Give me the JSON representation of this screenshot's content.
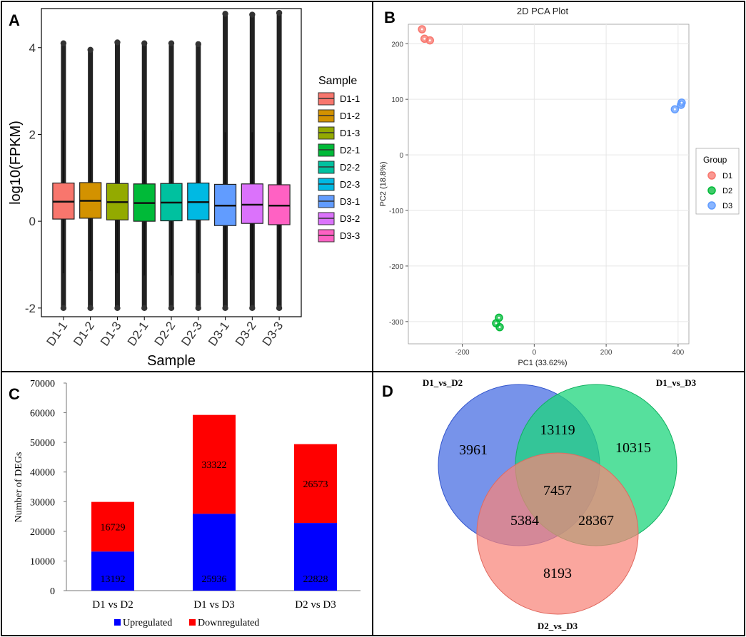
{
  "chart_data": [
    {
      "panel": "A",
      "type": "box",
      "title": "",
      "xlabel": "Sample",
      "ylabel": "log10(FPKM)",
      "ylim": [
        -2.2,
        4.9
      ],
      "yticks": [
        -2,
        0,
        2,
        4
      ],
      "legend_title": "Sample",
      "legend_position": "right",
      "samples": [
        {
          "name": "D1-1",
          "color": "#F8766D",
          "q1": 0.05,
          "median": 0.45,
          "q3": 0.88,
          "wlow": -1.2,
          "whigh": 2.1,
          "outlier_top": 4.1,
          "outlier_bottom": -2.0
        },
        {
          "name": "D1-2",
          "color": "#D39200",
          "q1": 0.07,
          "median": 0.47,
          "q3": 0.89,
          "wlow": -1.15,
          "whigh": 2.1,
          "outlier_top": 3.95,
          "outlier_bottom": -2.0
        },
        {
          "name": "D1-3",
          "color": "#93AA00",
          "q1": 0.03,
          "median": 0.44,
          "q3": 0.87,
          "wlow": -1.2,
          "whigh": 2.1,
          "outlier_top": 4.12,
          "outlier_bottom": -2.0
        },
        {
          "name": "D2-1",
          "color": "#00BA38",
          "q1": 0.0,
          "median": 0.42,
          "q3": 0.86,
          "wlow": -1.25,
          "whigh": 2.1,
          "outlier_top": 4.1,
          "outlier_bottom": -2.0
        },
        {
          "name": "D2-2",
          "color": "#00C19F",
          "q1": 0.01,
          "median": 0.43,
          "q3": 0.87,
          "wlow": -1.25,
          "whigh": 2.1,
          "outlier_top": 4.1,
          "outlier_bottom": -2.0
        },
        {
          "name": "D2-3",
          "color": "#00B9E3",
          "q1": 0.03,
          "median": 0.44,
          "q3": 0.88,
          "wlow": -1.2,
          "whigh": 2.1,
          "outlier_top": 4.08,
          "outlier_bottom": -2.0
        },
        {
          "name": "D3-1",
          "color": "#619CFF",
          "q1": -0.1,
          "median": 0.36,
          "q3": 0.85,
          "wlow": -1.35,
          "whigh": 2.05,
          "outlier_top": 4.78,
          "outlier_bottom": -2.0
        },
        {
          "name": "D3-2",
          "color": "#DB72FB",
          "q1": -0.05,
          "median": 0.38,
          "q3": 0.86,
          "wlow": -1.35,
          "whigh": 2.05,
          "outlier_top": 4.76,
          "outlier_bottom": -2.0
        },
        {
          "name": "D3-3",
          "color": "#FF61C3",
          "q1": -0.08,
          "median": 0.36,
          "q3": 0.84,
          "wlow": -1.35,
          "whigh": 2.05,
          "outlier_top": 4.8,
          "outlier_bottom": -2.0
        }
      ]
    },
    {
      "panel": "B",
      "type": "scatter",
      "title": "2D PCA Plot",
      "xlabel": "PC1 (33.62%)",
      "ylabel": "PC2 (18.8%)",
      "xlim": [
        -350,
        430
      ],
      "ylim": [
        -340,
        235
      ],
      "xticks": [
        -200,
        0,
        200,
        400
      ],
      "yticks": [
        -300,
        -200,
        -100,
        0,
        100,
        200
      ],
      "grid": true,
      "legend_title": "Group",
      "legend_position": "right",
      "groups": [
        {
          "name": "D1",
          "color": "#F8766D",
          "points": [
            [
              -312,
              226
            ],
            [
              -305,
              209
            ],
            [
              -290,
              206
            ]
          ]
        },
        {
          "name": "D2",
          "color": "#00BA38",
          "points": [
            [
              -98,
              -293
            ],
            [
              -106,
              -303
            ],
            [
              -96,
              -310
            ]
          ]
        },
        {
          "name": "D3",
          "color": "#619CFF",
          "points": [
            [
              391,
              82
            ],
            [
              408,
              90
            ],
            [
              410,
              94
            ]
          ]
        }
      ]
    },
    {
      "panel": "C",
      "type": "bar",
      "stacked": true,
      "title": "",
      "xlabel": "",
      "ylabel": "Number of DEGs",
      "ylim": [
        0,
        70000
      ],
      "yticks": [
        0,
        10000,
        20000,
        30000,
        40000,
        50000,
        60000,
        70000
      ],
      "categories": [
        "D1 vs D2",
        "D1 vs D3",
        "D2 vs D3"
      ],
      "legend_position": "bottom",
      "series": [
        {
          "name": "Upregulated",
          "color": "#0000FF",
          "values": [
            13192,
            25936,
            22828
          ]
        },
        {
          "name": "Downregulated",
          "color": "#FF0000",
          "values": [
            16729,
            33322,
            26573
          ]
        }
      ]
    },
    {
      "panel": "D",
      "type": "venn",
      "sets": [
        {
          "name": "D1_vs_D2",
          "color": "#4A6FE3"
        },
        {
          "name": "D1_vs_D3",
          "color": "#1ED67C"
        },
        {
          "name": "D2_vs_D3",
          "color": "#F88379"
        }
      ],
      "regions": {
        "only_A": 3961,
        "only_B": 10315,
        "only_C": 8193,
        "A_B": 13119,
        "A_C": 5384,
        "B_C": 28367,
        "A_B_C": 7457
      }
    }
  ]
}
